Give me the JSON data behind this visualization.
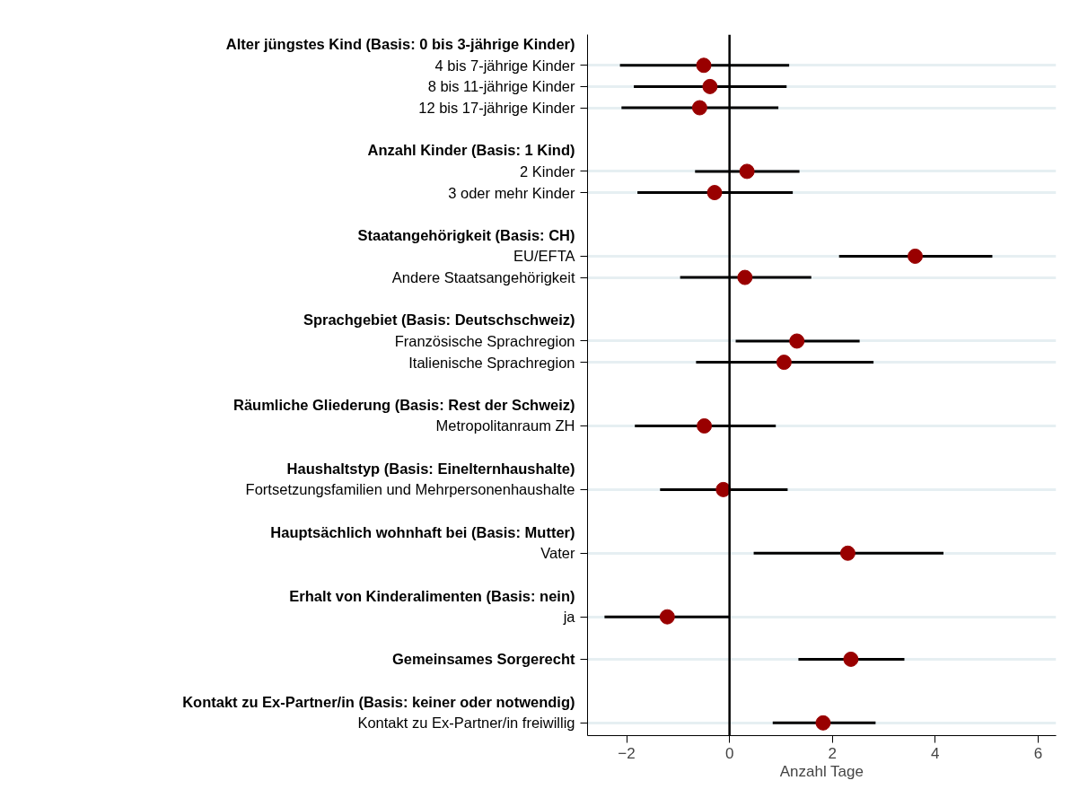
{
  "chart_data": {
    "type": "scatter",
    "orientation": "horizontal",
    "marker": "circle",
    "grid": "y",
    "xlabel": "Anzahl Tage",
    "xlim": [
      -2.76,
      6.35
    ],
    "xticks": [
      -2,
      0,
      2,
      4,
      6
    ],
    "ref_lines": [
      {
        "axis": "x",
        "value": 0,
        "color": "#000000"
      }
    ],
    "categories": [
      "Alter jüngstes Kind (Basis: 0 bis 3-jährige Kinder)",
      "4 bis 7-jährige Kinder",
      "8 bis 11-jährige Kinder",
      "12 bis 17-jährige Kinder",
      null,
      "Anzahl Kinder (Basis: 1 Kind)",
      "2 Kinder",
      "3 oder mehr Kinder",
      null,
      "Staatangehörigkeit (Basis: CH)",
      "EU/EFTA",
      "Andere Staatsangehörigkeit",
      null,
      "Sprachgebiet (Basis: Deutschschweiz)",
      "Französische Sprachregion",
      "Italienische Sprachregion",
      null,
      "Räumliche Gliederung (Basis: Rest der Schweiz)",
      "Metropolitanraum ZH",
      null,
      "Haushaltstyp (Basis: Einelternhaushalte)",
      "Fortsetzungsfamilien und Mehrpersonenhaushalte",
      null,
      "Hauptsächlich wohnhaft bei (Basis: Mutter)",
      "Vater",
      null,
      "Erhalt von Kinderalimenten (Basis: nein)",
      "ja",
      null,
      "Gemeinsames Sorgerecht",
      null,
      "Kontakt zu Ex-Partner/in (Basis: keiner oder notwendig)",
      "Kontakt zu Ex-Partner/in freiwillig"
    ],
    "series": [
      {
        "color": "#990000",
        "values": [
          null,
          -0.5,
          -0.38,
          -0.58,
          null,
          null,
          0.34,
          -0.29,
          null,
          null,
          3.61,
          0.3,
          null,
          null,
          1.31,
          1.06,
          null,
          null,
          -0.49,
          null,
          null,
          -0.12,
          null,
          null,
          2.3,
          null,
          null,
          -1.21,
          null,
          2.36,
          null,
          null,
          1.82
        ],
        "errors": [
          null,
          [
            -2.13,
            1.16
          ],
          [
            -1.86,
            1.11
          ],
          [
            -2.1,
            0.95
          ],
          null,
          null,
          [
            -0.67,
            1.36
          ],
          [
            -1.79,
            1.23
          ],
          null,
          null,
          [
            2.13,
            5.11
          ],
          [
            -0.96,
            1.59
          ],
          null,
          null,
          [
            0.12,
            2.53
          ],
          [
            -0.65,
            2.8
          ],
          null,
          null,
          [
            -1.84,
            0.9
          ],
          null,
          null,
          [
            -1.35,
            1.13
          ],
          null,
          null,
          [
            0.47,
            4.16
          ],
          null,
          null,
          [
            -2.43,
            0.0
          ],
          null,
          [
            1.34,
            3.4
          ],
          null,
          null,
          [
            0.84,
            2.84
          ]
        ]
      }
    ]
  }
}
